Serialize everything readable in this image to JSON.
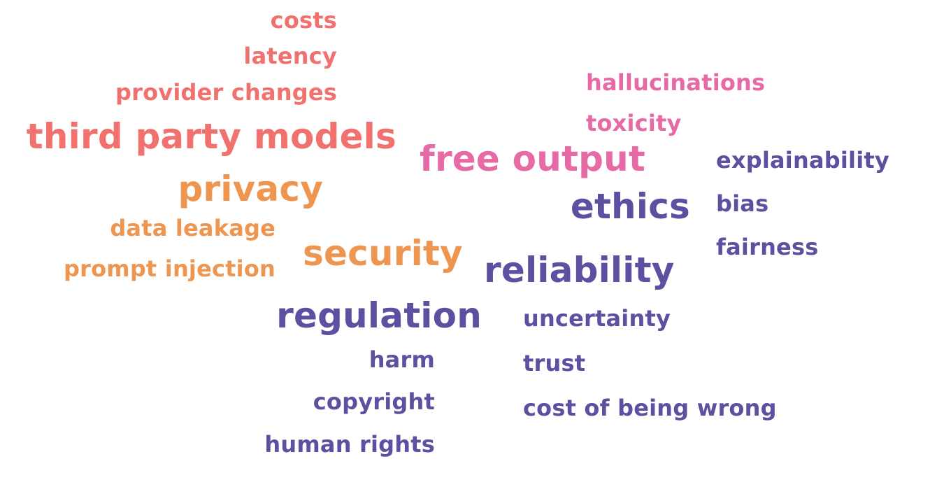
{
  "colors": {
    "coral": "#f0716e",
    "orange": "#ee9550",
    "pink": "#e66aa6",
    "purple": "#5e4fa0"
  },
  "words": {
    "costs": "costs",
    "latency": "latency",
    "provider_changes": "provider changes",
    "third_party_models": "third party models",
    "privacy": "privacy",
    "data_leakage": "data leakage",
    "prompt_injection": "prompt injection",
    "security": "security",
    "free_output": "free output",
    "hallucinations": "hallucinations",
    "toxicity": "toxicity",
    "explainability": "explainability",
    "bias": "bias",
    "fairness": "fairness",
    "ethics": "ethics",
    "reliability": "reliability",
    "regulation": "regulation",
    "uncertainty": "uncertainty",
    "trust": "trust",
    "cost_of_being_wrong": "cost of being wrong",
    "harm": "harm",
    "copyright": "copyright",
    "human_rights": "human rights"
  }
}
